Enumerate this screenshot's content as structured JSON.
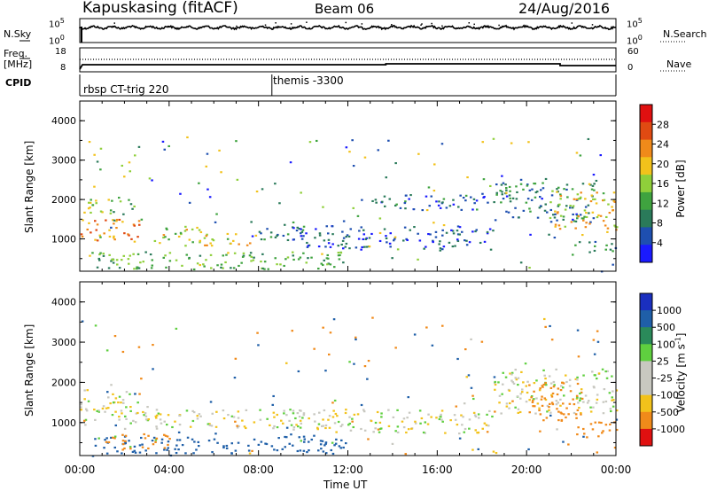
{
  "header": {
    "station": "Kapuskasing (fitACF)",
    "beam": "Beam 06",
    "date": "24/Aug/2016"
  },
  "strip_labels": {
    "nsky": "N.Sky",
    "noise_top": "10^5",
    "noise_bottom": "10^0",
    "nsearch": "N.Search",
    "nsearch_right_top": "10^5",
    "nsearch_right_bottom": "10^0",
    "freq_line1": "Freq.",
    "freq_line2": "[MHz]",
    "freq_top": "18",
    "freq_bottom": "8",
    "nave": "Nave",
    "nave_top": "60",
    "nave_bottom": "0",
    "cpid": "CPID",
    "cpid_1": "rbsp CT-trig 220",
    "cpid_2": "themis -3300"
  },
  "axes": {
    "xlabel": "Time UT",
    "ylabel": "Slant Range [km]",
    "x_ticks": [
      "00:00",
      "04:00",
      "08:00",
      "12:00",
      "16:00",
      "20:00",
      "00:00"
    ],
    "y_ticks": [
      "1000",
      "2000",
      "3000",
      "4000"
    ]
  },
  "colorbars": {
    "power": {
      "label": "Power [dB]",
      "ticks": [
        "4",
        "8",
        "12",
        "16",
        "20",
        "24",
        "28"
      ],
      "colors": [
        "#1a1aff",
        "#1e4fb0",
        "#2a7a5a",
        "#3fa33f",
        "#8fcf3a",
        "#f2c21b",
        "#f08a1a",
        "#e04a12",
        "#e01010"
      ]
    },
    "velocity": {
      "label": "Velocity [m s^-1]",
      "ticks": [
        "1000",
        "500",
        "100",
        "25",
        "-25",
        "-100",
        "-500",
        "-1000"
      ],
      "colors": [
        "#1a2fbf",
        "#1f5fa8",
        "#2a8a5a",
        "#5fcf3f",
        "#c8c8c0",
        "#c8c8c0",
        "#f2c21b",
        "#f08a1a",
        "#e01010"
      ]
    }
  },
  "chart_data": [
    {
      "type": "heatmap",
      "title": "",
      "xlabel": "Time UT",
      "ylabel": "Slant Range [km]",
      "x_range": [
        "00:00",
        "00:00"
      ],
      "y_range": [
        180,
        4500
      ],
      "colorbar_label": "Power [dB]",
      "colorbar_range": [
        0,
        30
      ],
      "features": [
        {
          "t_start": 0.0,
          "t_end": 2.7,
          "range_start": 900,
          "range_end": 1500,
          "value": 22
        },
        {
          "t_start": 0.3,
          "t_end": 2.5,
          "range_start": 1600,
          "range_end": 2100,
          "value": 14
        },
        {
          "t_start": 0.5,
          "t_end": 12.0,
          "range_start": 200,
          "range_end": 650,
          "value": 12
        },
        {
          "t_start": 3.3,
          "t_end": 5.5,
          "range_start": 800,
          "range_end": 1300,
          "value": 16
        },
        {
          "t_start": 5.5,
          "t_end": 8.0,
          "range_start": 800,
          "range_end": 1100,
          "value": 18
        },
        {
          "t_start": 7.8,
          "t_end": 10.0,
          "range_start": 900,
          "range_end": 1300,
          "value": 8
        },
        {
          "t_start": 9.5,
          "t_end": 18.5,
          "range_start": 700,
          "range_end": 1300,
          "value": 5
        },
        {
          "t_start": 13.0,
          "t_end": 18.5,
          "range_start": 1700,
          "range_end": 2100,
          "value": 6
        },
        {
          "t_start": 18.5,
          "t_end": 23.0,
          "range_start": 1400,
          "range_end": 2500,
          "value": 8
        },
        {
          "t_start": 21.0,
          "t_end": 24.0,
          "range_start": 1200,
          "range_end": 2200,
          "value": 18
        },
        {
          "t_start": 22.0,
          "t_end": 24.0,
          "range_start": 600,
          "range_end": 900,
          "value": 10
        }
      ]
    },
    {
      "type": "heatmap",
      "title": "",
      "xlabel": "Time UT",
      "ylabel": "Slant Range [km]",
      "x_range": [
        "00:00",
        "00:00"
      ],
      "y_range": [
        180,
        4500
      ],
      "colorbar_label": "Velocity [m s^-1]",
      "colorbar_range": [
        -1000,
        1000
      ],
      "features": [
        {
          "t_start": 0.0,
          "t_end": 3.0,
          "range_start": 900,
          "range_end": 1800,
          "value": 0
        },
        {
          "t_start": 0.5,
          "t_end": 12.0,
          "range_start": 200,
          "range_end": 650,
          "value": 150
        },
        {
          "t_start": 1.0,
          "t_end": 4.0,
          "range_start": 300,
          "range_end": 700,
          "value": -150
        },
        {
          "t_start": 3.0,
          "t_end": 10.0,
          "range_start": 800,
          "range_end": 1300,
          "value": 0
        },
        {
          "t_start": 9.5,
          "t_end": 18.5,
          "range_start": 700,
          "range_end": 1300,
          "value": 0
        },
        {
          "t_start": 18.5,
          "t_end": 24.0,
          "range_start": 1200,
          "range_end": 2300,
          "value": 0
        },
        {
          "t_start": 20.0,
          "t_end": 22.5,
          "range_start": 1000,
          "range_end": 2000,
          "value": -300
        },
        {
          "t_start": 22.0,
          "t_end": 24.0,
          "range_start": 600,
          "range_end": 1000,
          "value": -300
        }
      ]
    }
  ]
}
